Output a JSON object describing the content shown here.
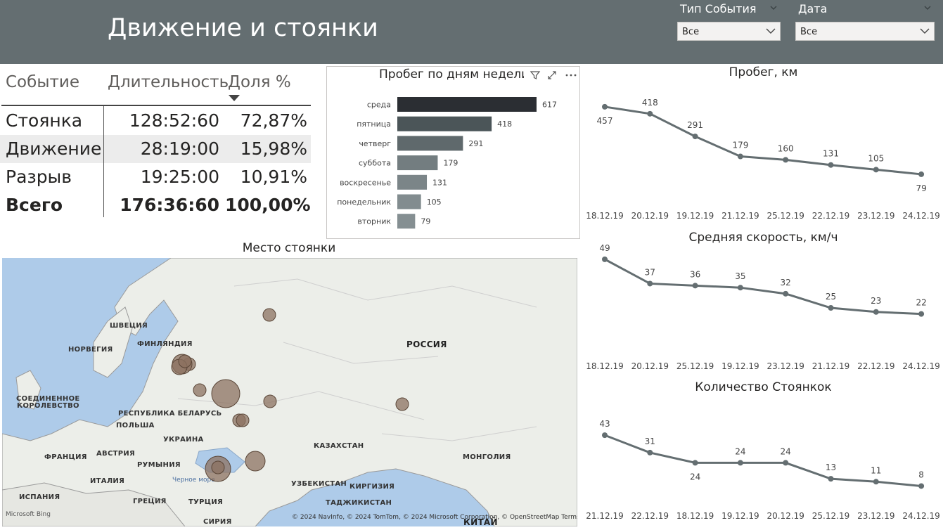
{
  "header": {
    "title": "Движение и стоянки",
    "slicers": [
      {
        "label": "Тип События",
        "value": "Все"
      },
      {
        "label": "Дата",
        "value": "Все"
      }
    ]
  },
  "table": {
    "headers": [
      "Событие",
      "Длительность",
      "Доля %"
    ],
    "rows": [
      {
        "event": "Стоянка",
        "duration": "128:52:60",
        "share": "72,87%"
      },
      {
        "event": "Движение",
        "duration": "28:19:00",
        "share": "15,98%"
      },
      {
        "event": "Разрыв",
        "duration": "19:25:00",
        "share": "10,91%"
      }
    ],
    "total": {
      "event": "Всего",
      "duration": "176:36:60",
      "share": "100,00%"
    }
  },
  "map": {
    "title": "Место стоянки",
    "labels": {
      "russia": "РОССИЯ",
      "sweden": "ШВЕЦИЯ",
      "norway": "НОРВЕГИЯ",
      "finland": "ФИНЛЯНДИЯ",
      "uk1": "СОЕДИНЕННОЕ",
      "uk2": "КОРОЛЕВСТВО",
      "belarus": "РЕСПУБЛИКА БЕЛАРУСЬ",
      "poland": "ПОЛЬША",
      "ukraine": "УКРАИНА",
      "austria": "АВСТРИЯ",
      "france": "ФРАНЦИЯ",
      "romania": "РУМЫНИЯ",
      "italy": "ИТАЛИЯ",
      "spain": "ИСПАНИЯ",
      "greece": "ГРЕЦИЯ",
      "turkey": "ТУРЦИЯ",
      "syria": "СИРИЯ",
      "kazakhstan": "КАЗАХСТАН",
      "uzbekistan": "УЗБЕКИСТАН",
      "kyrgyzstan": "КИРГИЗИЯ",
      "tajikistan": "ТАДЖИКИСТАН",
      "mongolia": "МОНГОЛИЯ",
      "china": "КИТАЙ",
      "black_sea": "Черное море"
    },
    "copyright": "© 2024 NavInfo, © 2024 TomTom, © 2024 Microsoft Corporation, © OpenStreetMap  Terms",
    "bing": "Microsoft Bing"
  },
  "chart_data": [
    {
      "type": "bar",
      "title": "Пробег по дням недели",
      "categories": [
        "среда",
        "пятница",
        "четверг",
        "суббота",
        "воскресенье",
        "понедельник",
        "вторник"
      ],
      "values": [
        617,
        418,
        291,
        179,
        131,
        105,
        79
      ],
      "colors": [
        "#2b2e33",
        "#4b5558",
        "#5f696c",
        "#737d80",
        "#7b8588",
        "#828c8f",
        "#858f92"
      ]
    },
    {
      "type": "line",
      "title": "Пробег, км",
      "categories": [
        "18.12.19",
        "20.12.19",
        "19.12.19",
        "21.12.19",
        "25.12.19",
        "22.12.19",
        "23.12.19",
        "24.12.19"
      ],
      "values": [
        457,
        418,
        291,
        179,
        160,
        131,
        105,
        79
      ],
      "ylim": [
        0,
        500
      ]
    },
    {
      "type": "line",
      "title": "Средняя скорость, км/ч",
      "categories": [
        "18.12.19",
        "20.12.19",
        "25.12.19",
        "19.12.19",
        "23.12.19",
        "21.12.19",
        "22.12.19",
        "24.12.19"
      ],
      "values": [
        49,
        37,
        36,
        35,
        32,
        25,
        23,
        22
      ],
      "ylim": [
        0,
        50
      ]
    },
    {
      "type": "line",
      "title": "Количество Стоянкок",
      "categories": [
        "21.12.19",
        "22.12.19",
        "18.12.19",
        "19.12.19",
        "20.12.19",
        "25.12.19",
        "23.12.19",
        "24.12.19"
      ],
      "values": [
        43,
        31,
        24,
        24,
        24,
        13,
        11,
        8
      ],
      "ylim": [
        0,
        45
      ]
    }
  ],
  "colors": {
    "header": "#646e71",
    "line": "#646e71",
    "bubble": "#8c7260"
  }
}
